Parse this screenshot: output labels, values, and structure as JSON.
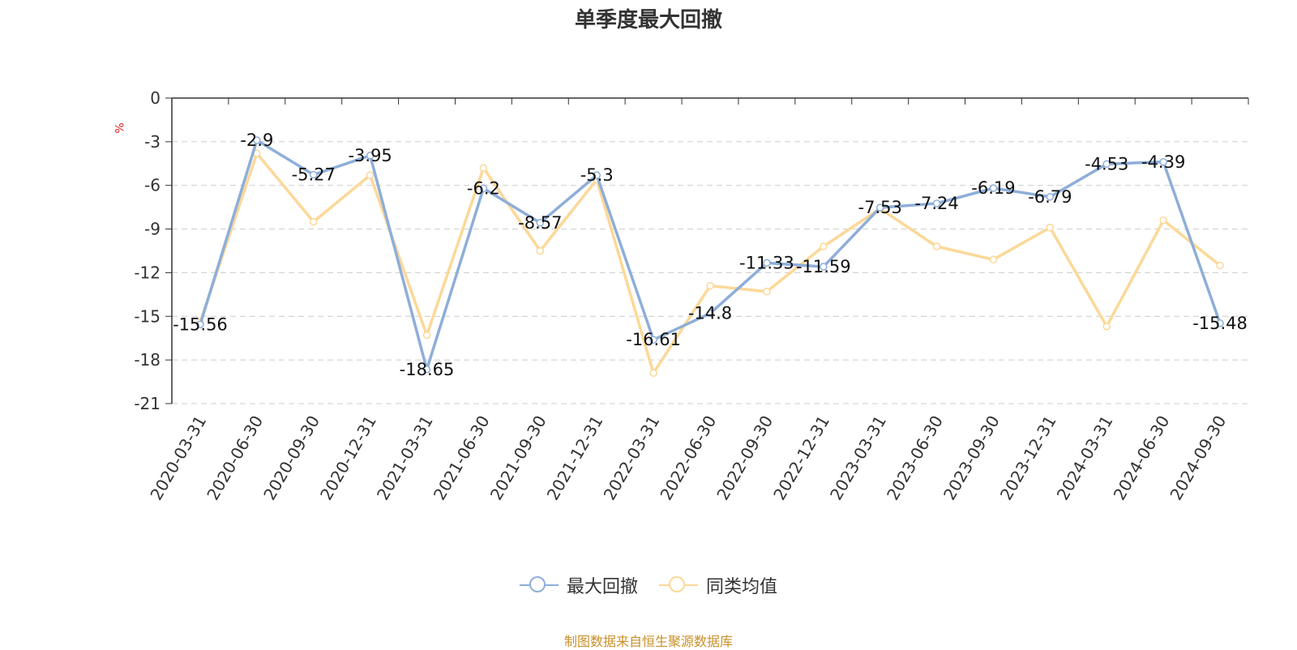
{
  "title": "单季度最大回撤",
  "y_unit": "%",
  "source": "制图数据来自恒生聚源数据库",
  "chart_data": {
    "type": "line",
    "title": "单季度最大回撤",
    "ylabel": "%",
    "xlabel": "",
    "ylim": [
      -21,
      0
    ],
    "y_ticks": [
      0,
      -3,
      -6,
      -9,
      -12,
      -15,
      -18,
      -21
    ],
    "grid": true,
    "legend_position": "bottom",
    "categories": [
      "2020-03-31",
      "2020-06-30",
      "2020-09-30",
      "2020-12-31",
      "2021-03-31",
      "2021-06-30",
      "2021-09-30",
      "2021-12-31",
      "2022-03-31",
      "2022-06-30",
      "2022-09-30",
      "2022-12-31",
      "2023-03-31",
      "2023-06-30",
      "2023-09-30",
      "2023-12-31",
      "2024-03-31",
      "2024-06-30",
      "2024-09-30"
    ],
    "series": [
      {
        "name": "最大回撤",
        "color": "#8eaed9",
        "values": [
          -15.56,
          -2.9,
          -5.27,
          -3.95,
          -18.65,
          -6.2,
          -8.57,
          -5.3,
          -16.61,
          -14.8,
          -11.33,
          -11.59,
          -7.53,
          -7.24,
          -6.19,
          -6.79,
          -4.53,
          -4.39,
          -15.48
        ],
        "labels": [
          "-15.56",
          "-2.9",
          "-5.27",
          "-3.95",
          "-18.65",
          "-6.2",
          "-8.57",
          "-5.3",
          "-16.61",
          "-14.8",
          "-11.33",
          "-11.59",
          "-7.53",
          "-7.24",
          "-6.19",
          "-6.79",
          "-4.53",
          "-4.39",
          "-15.48"
        ]
      },
      {
        "name": "同类均值",
        "color": "#fcd898",
        "values": [
          -15.4,
          -3.8,
          -8.5,
          -5.3,
          -16.3,
          -4.8,
          -10.5,
          -5.6,
          -18.9,
          -12.9,
          -13.3,
          -10.2,
          -7.6,
          -10.2,
          -11.1,
          -8.9,
          -15.7,
          -8.4,
          -11.5
        ]
      }
    ]
  }
}
